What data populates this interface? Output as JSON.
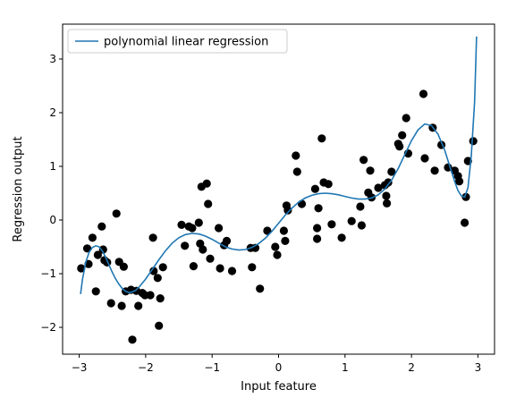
{
  "chart_data": {
    "type": "scatter",
    "xlabel": "Input feature",
    "ylabel": "Regression output",
    "xlim": [
      -3.25,
      3.25
    ],
    "ylim": [
      -2.5,
      3.65
    ],
    "xticks": [
      -3,
      -2,
      -1,
      0,
      1,
      2,
      3
    ],
    "yticks": [
      -2,
      -1,
      0,
      1,
      2,
      3
    ],
    "xtick_labels": [
      "−3",
      "−2",
      "−1",
      "0",
      "1",
      "2",
      "3"
    ],
    "ytick_labels": [
      "−2",
      "−1",
      "0",
      "1",
      "2",
      "3"
    ],
    "grid": false,
    "legend": {
      "position": "top-left",
      "entries": [
        "polynomial linear regression"
      ]
    },
    "colors": {
      "line": "#1f77b4",
      "points": "#000000"
    },
    "points": [
      [
        -2.97,
        -0.9
      ],
      [
        -2.88,
        -0.53
      ],
      [
        -2.86,
        -0.82
      ],
      [
        -2.8,
        -0.33
      ],
      [
        -2.75,
        -1.33
      ],
      [
        -2.72,
        -0.65
      ],
      [
        -2.66,
        -0.12
      ],
      [
        -2.64,
        -0.55
      ],
      [
        -2.62,
        -0.75
      ],
      [
        -2.58,
        -0.79
      ],
      [
        -2.52,
        -1.55
      ],
      [
        -2.44,
        0.12
      ],
      [
        -2.4,
        -0.78
      ],
      [
        -2.36,
        -1.6
      ],
      [
        -2.33,
        -0.87
      ],
      [
        -2.3,
        -1.33
      ],
      [
        -2.22,
        -1.3
      ],
      [
        -2.2,
        -2.23
      ],
      [
        -2.14,
        -1.32
      ],
      [
        -2.11,
        -1.6
      ],
      [
        -2.05,
        -1.36
      ],
      [
        -2.01,
        -1.4
      ],
      [
        -1.93,
        -1.4
      ],
      [
        -1.89,
        -0.33
      ],
      [
        -1.88,
        -0.95
      ],
      [
        -1.82,
        -1.08
      ],
      [
        -1.8,
        -1.97
      ],
      [
        -1.78,
        -1.46
      ],
      [
        -1.74,
        -0.88
      ],
      [
        -1.46,
        -0.09
      ],
      [
        -1.41,
        -0.48
      ],
      [
        -1.35,
        -0.12
      ],
      [
        -1.3,
        -0.15
      ],
      [
        -1.28,
        -0.86
      ],
      [
        -1.2,
        -0.05
      ],
      [
        -1.18,
        -0.44
      ],
      [
        -1.16,
        0.62
      ],
      [
        -1.14,
        -0.55
      ],
      [
        -1.08,
        0.68
      ],
      [
        -1.06,
        0.3
      ],
      [
        -1.03,
        -0.72
      ],
      [
        -0.9,
        -0.15
      ],
      [
        -0.88,
        -0.9
      ],
      [
        -0.82,
        -0.47
      ],
      [
        -0.78,
        -0.39
      ],
      [
        -0.7,
        -0.95
      ],
      [
        -0.42,
        -0.52
      ],
      [
        -0.4,
        -0.88
      ],
      [
        -0.35,
        -0.52
      ],
      [
        -0.28,
        -1.28
      ],
      [
        -0.17,
        -0.2
      ],
      [
        -0.05,
        -0.5
      ],
      [
        -0.02,
        -0.65
      ],
      [
        0.08,
        -0.2
      ],
      [
        0.1,
        -0.39
      ],
      [
        0.12,
        0.27
      ],
      [
        0.14,
        0.18
      ],
      [
        0.26,
        1.2
      ],
      [
        0.28,
        0.9
      ],
      [
        0.35,
        0.3
      ],
      [
        0.55,
        0.58
      ],
      [
        0.58,
        -0.15
      ],
      [
        0.58,
        -0.35
      ],
      [
        0.6,
        0.22
      ],
      [
        0.65,
        1.52
      ],
      [
        0.68,
        0.7
      ],
      [
        0.75,
        0.67
      ],
      [
        0.8,
        -0.08
      ],
      [
        0.95,
        -0.33
      ],
      [
        1.1,
        -0.02
      ],
      [
        1.23,
        0.25
      ],
      [
        1.25,
        -0.1
      ],
      [
        1.28,
        1.12
      ],
      [
        1.35,
        0.51
      ],
      [
        1.38,
        0.92
      ],
      [
        1.4,
        0.42
      ],
      [
        1.5,
        0.6
      ],
      [
        1.6,
        0.65
      ],
      [
        1.62,
        0.45
      ],
      [
        1.63,
        0.31
      ],
      [
        1.65,
        0.7
      ],
      [
        1.7,
        0.9
      ],
      [
        1.8,
        1.42
      ],
      [
        1.82,
        1.37
      ],
      [
        1.86,
        1.58
      ],
      [
        1.92,
        1.9
      ],
      [
        1.95,
        1.24
      ],
      [
        2.18,
        2.35
      ],
      [
        2.2,
        1.15
      ],
      [
        2.32,
        1.72
      ],
      [
        2.35,
        0.92
      ],
      [
        2.45,
        1.4
      ],
      [
        2.55,
        0.98
      ],
      [
        2.65,
        0.92
      ],
      [
        2.7,
        0.82
      ],
      [
        2.72,
        0.72
      ],
      [
        2.8,
        -0.05
      ],
      [
        2.82,
        0.43
      ],
      [
        2.85,
        1.1
      ],
      [
        2.93,
        1.47
      ]
    ],
    "curve": [
      [
        -2.98,
        -1.38
      ],
      [
        -2.95,
        -1.1
      ],
      [
        -2.9,
        -0.78
      ],
      [
        -2.85,
        -0.6
      ],
      [
        -2.8,
        -0.51
      ],
      [
        -2.75,
        -0.48
      ],
      [
        -2.7,
        -0.5
      ],
      [
        -2.65,
        -0.58
      ],
      [
        -2.6,
        -0.7
      ],
      [
        -2.55,
        -0.84
      ],
      [
        -2.5,
        -0.98
      ],
      [
        -2.45,
        -1.1
      ],
      [
        -2.4,
        -1.2
      ],
      [
        -2.35,
        -1.28
      ],
      [
        -2.3,
        -1.33
      ],
      [
        -2.25,
        -1.35
      ],
      [
        -2.2,
        -1.34
      ],
      [
        -2.15,
        -1.31
      ],
      [
        -2.1,
        -1.25
      ],
      [
        -2.0,
        -1.1
      ],
      [
        -1.9,
        -0.92
      ],
      [
        -1.8,
        -0.74
      ],
      [
        -1.7,
        -0.57
      ],
      [
        -1.6,
        -0.43
      ],
      [
        -1.5,
        -0.33
      ],
      [
        -1.4,
        -0.27
      ],
      [
        -1.3,
        -0.25
      ],
      [
        -1.2,
        -0.26
      ],
      [
        -1.1,
        -0.3
      ],
      [
        -1.0,
        -0.36
      ],
      [
        -0.9,
        -0.43
      ],
      [
        -0.8,
        -0.5
      ],
      [
        -0.7,
        -0.54
      ],
      [
        -0.6,
        -0.56
      ],
      [
        -0.5,
        -0.55
      ],
      [
        -0.4,
        -0.51
      ],
      [
        -0.3,
        -0.44
      ],
      [
        -0.2,
        -0.34
      ],
      [
        -0.1,
        -0.21
      ],
      [
        0.0,
        -0.06
      ],
      [
        0.1,
        0.09
      ],
      [
        0.2,
        0.22
      ],
      [
        0.3,
        0.33
      ],
      [
        0.4,
        0.41
      ],
      [
        0.5,
        0.46
      ],
      [
        0.6,
        0.49
      ],
      [
        0.7,
        0.5
      ],
      [
        0.8,
        0.49
      ],
      [
        0.9,
        0.47
      ],
      [
        1.0,
        0.44
      ],
      [
        1.1,
        0.41
      ],
      [
        1.2,
        0.39
      ],
      [
        1.3,
        0.39
      ],
      [
        1.4,
        0.41
      ],
      [
        1.5,
        0.47
      ],
      [
        1.6,
        0.58
      ],
      [
        1.7,
        0.74
      ],
      [
        1.8,
        0.96
      ],
      [
        1.9,
        1.22
      ],
      [
        2.0,
        1.48
      ],
      [
        2.1,
        1.68
      ],
      [
        2.2,
        1.79
      ],
      [
        2.3,
        1.76
      ],
      [
        2.4,
        1.6
      ],
      [
        2.5,
        1.3
      ],
      [
        2.6,
        0.91
      ],
      [
        2.65,
        0.72
      ],
      [
        2.7,
        0.55
      ],
      [
        2.75,
        0.45
      ],
      [
        2.8,
        0.43
      ],
      [
        2.85,
        0.6
      ],
      [
        2.9,
        1.2
      ],
      [
        2.95,
        2.2
      ],
      [
        2.98,
        3.42
      ]
    ]
  }
}
